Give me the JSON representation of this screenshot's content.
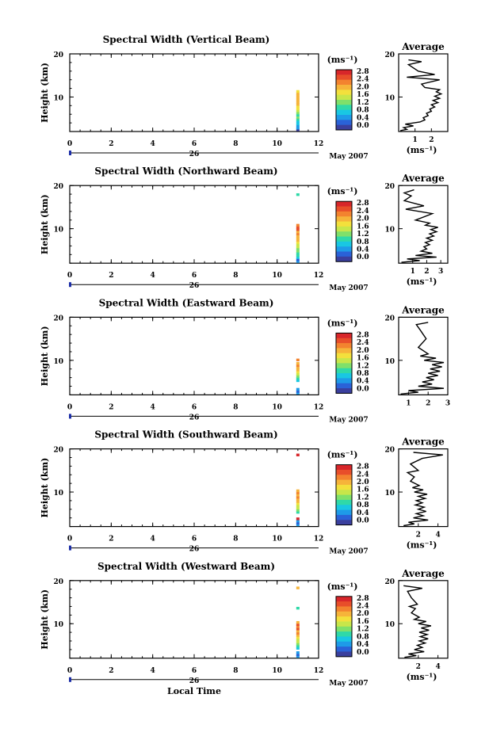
{
  "figure": {
    "footer_month": "May 2007",
    "day_label": "26",
    "xlabel_bottom": "Local Time",
    "avg_title": "Average",
    "colorbar_unit": "(ms⁻¹)"
  },
  "chart_data": [
    {
      "type": "heatmap",
      "title": "Spectral Width (Vertical Beam)",
      "xlabel": "",
      "ylabel": "Height (km)",
      "xlim": [
        0,
        12
      ],
      "ylim": [
        2,
        20
      ],
      "x_ticks": [
        "0",
        "2",
        "4",
        "6",
        "8",
        "10",
        "12"
      ],
      "y_ticks": [
        "10",
        "20"
      ],
      "colorbar": {
        "label": "(ms⁻¹)",
        "ticks": [
          "0.0",
          "0.4",
          "0.8",
          "1.2",
          "1.6",
          "2.0",
          "2.4",
          "2.8"
        ]
      },
      "profile_time": 11,
      "profile": [
        {
          "h": 2.3,
          "v": 0.2
        },
        {
          "h": 2.7,
          "v": 0.5
        },
        {
          "h": 3.2,
          "v": 0.6
        },
        {
          "h": 3.7,
          "v": 0.9
        },
        {
          "h": 4.2,
          "v": 0.9
        },
        {
          "h": 4.7,
          "v": 1.1
        },
        {
          "h": 5.2,
          "v": 1.3
        },
        {
          "h": 5.7,
          "v": 1.2
        },
        {
          "h": 6.2,
          "v": 1.4
        },
        {
          "h": 6.7,
          "v": 1.6
        },
        {
          "h": 7.2,
          "v": 1.8
        },
        {
          "h": 7.7,
          "v": 1.9
        },
        {
          "h": 8.2,
          "v": 2.0
        },
        {
          "h": 8.7,
          "v": 2.1
        },
        {
          "h": 9.2,
          "v": 2.2
        },
        {
          "h": 9.7,
          "v": 2.0
        },
        {
          "h": 10.2,
          "v": 2.2
        },
        {
          "h": 10.7,
          "v": 2.0
        },
        {
          "h": 11.2,
          "v": 1.9
        }
      ],
      "average": {
        "xlim": [
          0,
          3
        ],
        "x_ticks": [
          "1",
          "2"
        ],
        "xlabel": "(ms⁻¹)",
        "profile": [
          [
            0.1,
            2.2
          ],
          [
            0.5,
            2.5
          ],
          [
            0.3,
            2.9
          ],
          [
            0.9,
            3.3
          ],
          [
            0.4,
            3.7
          ],
          [
            1.3,
            4.2
          ],
          [
            1.6,
            4.7
          ],
          [
            1.5,
            5.2
          ],
          [
            1.8,
            5.7
          ],
          [
            1.7,
            6.2
          ],
          [
            2.0,
            6.7
          ],
          [
            1.9,
            7.2
          ],
          [
            2.2,
            7.7
          ],
          [
            2.0,
            8.2
          ],
          [
            2.4,
            8.7
          ],
          [
            2.1,
            9.2
          ],
          [
            2.5,
            9.7
          ],
          [
            2.2,
            10.2
          ],
          [
            2.6,
            10.7
          ],
          [
            2.3,
            11.2
          ],
          [
            2.5,
            11.7
          ],
          [
            1.6,
            12.2
          ],
          [
            1.4,
            13.0
          ],
          [
            2.5,
            14.0
          ],
          [
            0.5,
            14.6
          ],
          [
            2.2,
            15.2
          ],
          [
            1.2,
            16.0
          ],
          [
            0.6,
            17.5
          ],
          [
            1.4,
            18.2
          ],
          [
            0.6,
            18.6
          ]
        ]
      }
    },
    {
      "type": "heatmap",
      "title": "Spectral Width (Northward Beam)",
      "xlabel": "",
      "ylabel": "Height (km)",
      "xlim": [
        0,
        12
      ],
      "ylim": [
        2,
        20
      ],
      "x_ticks": [
        "0",
        "2",
        "4",
        "6",
        "8",
        "10",
        "12"
      ],
      "y_ticks": [
        "10",
        "20"
      ],
      "colorbar": {
        "label": "(ms⁻¹)",
        "ticks": [
          "0.0",
          "0.4",
          "0.8",
          "1.2",
          "1.6",
          "2.0",
          "2.4",
          "2.8"
        ]
      },
      "profile_time": 11,
      "profile": [
        {
          "h": 2.3,
          "v": 0.7
        },
        {
          "h": 2.7,
          "v": 0.4
        },
        {
          "h": 3.2,
          "v": 0.9
        },
        {
          "h": 3.7,
          "v": 1.0
        },
        {
          "h": 4.2,
          "v": 1.2
        },
        {
          "h": 4.7,
          "v": 1.4
        },
        {
          "h": 5.2,
          "v": 1.3
        },
        {
          "h": 5.7,
          "v": 1.6
        },
        {
          "h": 6.2,
          "v": 1.5
        },
        {
          "h": 6.7,
          "v": 1.8
        },
        {
          "h": 7.2,
          "v": 2.0
        },
        {
          "h": 7.7,
          "v": 2.2
        },
        {
          "h": 8.2,
          "v": 2.1
        },
        {
          "h": 8.7,
          "v": 2.4
        },
        {
          "h": 9.2,
          "v": 2.2
        },
        {
          "h": 9.7,
          "v": 2.6
        },
        {
          "h": 10.2,
          "v": 2.7
        },
        {
          "h": 10.7,
          "v": 2.3
        },
        {
          "h": 17.8,
          "v": 1.0
        }
      ],
      "average": {
        "xlim": [
          0,
          3.5
        ],
        "x_ticks": [
          "1",
          "2",
          "3"
        ],
        "xlabel": "(ms⁻¹)",
        "profile": [
          [
            0.2,
            2.2
          ],
          [
            1.5,
            2.6
          ],
          [
            0.6,
            3.0
          ],
          [
            2.7,
            3.4
          ],
          [
            1.2,
            3.8
          ],
          [
            2.4,
            4.3
          ],
          [
            1.6,
            4.8
          ],
          [
            2.0,
            5.3
          ],
          [
            1.8,
            5.8
          ],
          [
            2.2,
            6.3
          ],
          [
            1.9,
            6.8
          ],
          [
            2.4,
            7.3
          ],
          [
            2.0,
            7.8
          ],
          [
            2.5,
            8.3
          ],
          [
            2.2,
            8.8
          ],
          [
            2.7,
            9.3
          ],
          [
            2.3,
            9.8
          ],
          [
            2.8,
            10.3
          ],
          [
            1.9,
            10.8
          ],
          [
            2.2,
            11.3
          ],
          [
            1.2,
            12.0
          ],
          [
            2.4,
            13.5
          ],
          [
            0.5,
            14.5
          ],
          [
            1.8,
            15.3
          ],
          [
            0.4,
            16.5
          ],
          [
            0.9,
            17.6
          ],
          [
            0.4,
            18.3
          ],
          [
            1.1,
            19.0
          ]
        ]
      }
    },
    {
      "type": "heatmap",
      "title": "Spectral Width (Eastward Beam)",
      "xlabel": "",
      "ylabel": "Height (km)",
      "xlim": [
        0,
        12
      ],
      "ylim": [
        2,
        20
      ],
      "x_ticks": [
        "0",
        "2",
        "4",
        "6",
        "8",
        "10",
        "12"
      ],
      "y_ticks": [
        "10",
        "20"
      ],
      "colorbar": {
        "label": "(ms⁻¹)",
        "ticks": [
          "0.0",
          "0.4",
          "0.8",
          "1.2",
          "1.6",
          "2.0",
          "2.4",
          "2.8"
        ]
      },
      "profile_time": 11,
      "profile": [
        {
          "h": 2.3,
          "v": 0.5
        },
        {
          "h": 2.7,
          "v": 0.3
        },
        {
          "h": 3.2,
          "v": 0.7
        },
        {
          "h": 5.2,
          "v": 0.9
        },
        {
          "h": 5.7,
          "v": 1.2
        },
        {
          "h": 6.2,
          "v": 1.4
        },
        {
          "h": 6.7,
          "v": 1.6
        },
        {
          "h": 7.2,
          "v": 1.8
        },
        {
          "h": 7.7,
          "v": 2.0
        },
        {
          "h": 8.2,
          "v": 2.1
        },
        {
          "h": 8.7,
          "v": 2.3
        },
        {
          "h": 9.2,
          "v": 2.0
        },
        {
          "h": 10.0,
          "v": 2.4
        }
      ],
      "average": {
        "xlim": [
          0.5,
          3
        ],
        "x_ticks": [
          "1",
          "2",
          "3"
        ],
        "xlabel": "",
        "profile": [
          [
            0.6,
            2.2
          ],
          [
            1.5,
            2.6
          ],
          [
            1.0,
            3.0
          ],
          [
            2.8,
            3.5
          ],
          [
            1.5,
            4.0
          ],
          [
            2.2,
            4.5
          ],
          [
            1.7,
            5.0
          ],
          [
            2.3,
            5.5
          ],
          [
            1.9,
            6.0
          ],
          [
            2.5,
            6.5
          ],
          [
            2.0,
            7.0
          ],
          [
            2.6,
            7.5
          ],
          [
            2.1,
            8.0
          ],
          [
            2.7,
            8.5
          ],
          [
            2.2,
            9.0
          ],
          [
            2.8,
            9.5
          ],
          [
            1.8,
            10.0
          ],
          [
            2.4,
            10.5
          ],
          [
            1.6,
            11.0
          ],
          [
            2.0,
            11.5
          ],
          [
            1.5,
            13.0
          ],
          [
            1.9,
            15.0
          ],
          [
            1.6,
            17.0
          ],
          [
            1.4,
            18.3
          ],
          [
            2.0,
            18.8
          ]
        ]
      }
    },
    {
      "type": "heatmap",
      "title": "Spectral Width (Southward Beam)",
      "xlabel": "",
      "ylabel": "Height (km)",
      "xlim": [
        0,
        12
      ],
      "ylim": [
        2,
        20
      ],
      "x_ticks": [
        "0",
        "2",
        "4",
        "6",
        "8",
        "10",
        "12"
      ],
      "y_ticks": [
        "10",
        "20"
      ],
      "colorbar": {
        "label": "(ms⁻¹)",
        "ticks": [
          "0.0",
          "0.4",
          "0.8",
          "1.2",
          "1.6",
          "2.0",
          "2.4",
          "2.8"
        ]
      },
      "profile_time": 11,
      "profile": [
        {
          "h": 2.3,
          "v": 0.5
        },
        {
          "h": 2.7,
          "v": 0.3
        },
        {
          "h": 3.2,
          "v": 0.7
        },
        {
          "h": 3.7,
          "v": 2.8
        },
        {
          "h": 5.2,
          "v": 1.0
        },
        {
          "h": 5.7,
          "v": 1.3
        },
        {
          "h": 6.2,
          "v": 1.5
        },
        {
          "h": 6.7,
          "v": 1.7
        },
        {
          "h": 7.2,
          "v": 1.8
        },
        {
          "h": 7.7,
          "v": 2.0
        },
        {
          "h": 8.2,
          "v": 2.2
        },
        {
          "h": 8.7,
          "v": 2.3
        },
        {
          "h": 9.2,
          "v": 2.1
        },
        {
          "h": 9.7,
          "v": 2.4
        },
        {
          "h": 10.2,
          "v": 2.2
        },
        {
          "h": 18.5,
          "v": 2.8
        }
      ],
      "average": {
        "xlim": [
          0,
          5
        ],
        "x_ticks": [
          "2",
          "4"
        ],
        "xlabel": "(ms⁻¹)",
        "profile": [
          [
            0.5,
            2.2
          ],
          [
            1.6,
            2.6
          ],
          [
            1.0,
            3.0
          ],
          [
            3.0,
            3.5
          ],
          [
            1.5,
            4.0
          ],
          [
            2.5,
            4.5
          ],
          [
            1.8,
            5.0
          ],
          [
            2.8,
            5.5
          ],
          [
            2.0,
            6.0
          ],
          [
            2.6,
            6.5
          ],
          [
            1.7,
            7.0
          ],
          [
            2.4,
            7.5
          ],
          [
            1.8,
            8.0
          ],
          [
            2.7,
            8.5
          ],
          [
            2.0,
            9.0
          ],
          [
            2.9,
            9.5
          ],
          [
            1.6,
            10.0
          ],
          [
            2.5,
            10.5
          ],
          [
            1.4,
            11.0
          ],
          [
            2.1,
            11.5
          ],
          [
            1.2,
            12.5
          ],
          [
            1.6,
            13.5
          ],
          [
            0.9,
            14.5
          ],
          [
            2.0,
            15.0
          ],
          [
            1.2,
            16.5
          ],
          [
            2.4,
            17.8
          ],
          [
            4.5,
            18.6
          ],
          [
            1.5,
            19.2
          ]
        ]
      }
    },
    {
      "type": "heatmap",
      "title": "Spectral Width (Westward Beam)",
      "xlabel": "Local Time",
      "ylabel": "Height (km)",
      "xlim": [
        0,
        12
      ],
      "ylim": [
        2,
        20
      ],
      "x_ticks": [
        "0",
        "2",
        "4",
        "6",
        "8",
        "10",
        "12"
      ],
      "y_ticks": [
        "10",
        "20"
      ],
      "colorbar": {
        "label": "(ms⁻¹)",
        "ticks": [
          "0.0",
          "0.4",
          "0.8",
          "1.2",
          "1.6",
          "2.0",
          "2.4",
          "2.8"
        ]
      },
      "profile_time": 11,
      "profile": [
        {
          "h": 2.3,
          "v": 0.6
        },
        {
          "h": 2.7,
          "v": 0.3
        },
        {
          "h": 3.2,
          "v": 0.7
        },
        {
          "h": 4.2,
          "v": 0.9
        },
        {
          "h": 4.7,
          "v": 1.1
        },
        {
          "h": 5.2,
          "v": 1.3
        },
        {
          "h": 5.7,
          "v": 1.5
        },
        {
          "h": 6.2,
          "v": 1.7
        },
        {
          "h": 6.7,
          "v": 1.9
        },
        {
          "h": 7.2,
          "v": 2.1
        },
        {
          "h": 7.7,
          "v": 2.3
        },
        {
          "h": 8.2,
          "v": 2.2
        },
        {
          "h": 8.7,
          "v": 2.5
        },
        {
          "h": 9.2,
          "v": 2.4
        },
        {
          "h": 9.7,
          "v": 2.6
        },
        {
          "h": 10.2,
          "v": 2.2
        },
        {
          "h": 13.5,
          "v": 1.0
        },
        {
          "h": 18.2,
          "v": 2.0
        }
      ],
      "average": {
        "xlim": [
          0,
          5
        ],
        "x_ticks": [
          "2",
          "4"
        ],
        "xlabel": "(ms⁻¹)",
        "profile": [
          [
            0.6,
            2.2
          ],
          [
            1.8,
            2.6
          ],
          [
            1.0,
            3.0
          ],
          [
            2.6,
            3.5
          ],
          [
            1.6,
            4.0
          ],
          [
            2.4,
            4.5
          ],
          [
            1.9,
            5.0
          ],
          [
            2.7,
            5.5
          ],
          [
            2.1,
            6.0
          ],
          [
            3.0,
            6.5
          ],
          [
            2.2,
            7.0
          ],
          [
            2.9,
            7.5
          ],
          [
            2.1,
            8.0
          ],
          [
            3.1,
            8.5
          ],
          [
            2.3,
            9.0
          ],
          [
            3.3,
            9.5
          ],
          [
            2.0,
            10.0
          ],
          [
            2.8,
            10.5
          ],
          [
            1.6,
            11.0
          ],
          [
            2.1,
            11.5
          ],
          [
            1.3,
            12.5
          ],
          [
            1.7,
            13.5
          ],
          [
            1.1,
            14.0
          ],
          [
            1.9,
            14.5
          ],
          [
            1.3,
            16.0
          ],
          [
            0.9,
            17.5
          ],
          [
            2.4,
            18.2
          ],
          [
            0.5,
            18.8
          ]
        ]
      }
    }
  ]
}
